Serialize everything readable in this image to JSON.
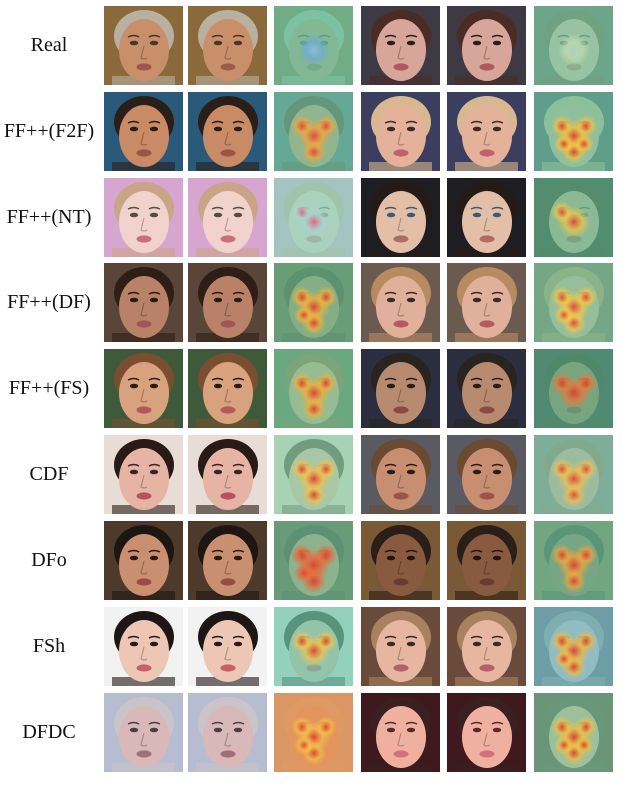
{
  "figure": {
    "rows": [
      {
        "label": "Real",
        "faces": [
          {
            "bg": "#8a6a3a",
            "skin": "#c98f6a",
            "hair": "#b8b0a0",
            "eyes": "#4a3426",
            "lips": "#9c5a4a"
          },
          {
            "bg": "#3e3a44",
            "skin": "#d8a59a",
            "hair": "#4a2c24",
            "eyes": "#2b1d18",
            "lips": "#b0585e"
          }
        ],
        "heat": [
          {
            "base": "#66c8a4",
            "hot": [
              "#8fbfd8",
              "#6fa9d6"
            ],
            "blobs": 1
          },
          {
            "base": "#7fcfa5",
            "hot": [
              "#a8d4c0",
              "#c3dbb2"
            ],
            "blobs": 1
          }
        ]
      },
      {
        "label": "FF++(F2F)",
        "faces": [
          {
            "bg": "#2a5a7a",
            "skin": "#c98a66",
            "hair": "#2a1e18",
            "eyes": "#2a1d16",
            "lips": "#9a5448"
          },
          {
            "bg": "#3b3e5e",
            "skin": "#e4b29a",
            "hair": "#d8b890",
            "eyes": "#3a2a22",
            "lips": "#c0606a"
          }
        ],
        "heat": [
          {
            "base": "#7cc6a0",
            "hot": [
              "#e8463a",
              "#f2a53c"
            ],
            "blobs": 4
          },
          {
            "base": "#6fc39e",
            "hot": [
              "#e2402f",
              "#f6c23e"
            ],
            "blobs": 6
          }
        ]
      },
      {
        "label": "FF++(NT)",
        "faces": [
          {
            "bg": "#d7a6d0",
            "skin": "#f1d2cc",
            "hair": "#c9a486",
            "eyes": "#5a4a44",
            "lips": "#c8707a"
          },
          {
            "bg": "#1e1e22",
            "skin": "#e4bfa8",
            "hair": "#241a16",
            "eyes": "#3a5a7a",
            "lips": "#b46a64"
          }
        ],
        "heat": [
          {
            "base": "#8fd0b8",
            "hot": [
              "#e8607a",
              "#a9d3cf"
            ],
            "blobs": 2
          },
          {
            "base": "#67b98e",
            "hot": [
              "#e2463a",
              "#f0c84a"
            ],
            "blobs": 2
          }
        ]
      },
      {
        "label": "FF++(DF)",
        "faces": [
          {
            "bg": "#5a4638",
            "skin": "#b98268",
            "hair": "#2e1e16",
            "eyes": "#2a1a12",
            "lips": "#a0545a"
          },
          {
            "bg": "#6a5a50",
            "skin": "#e0b09a",
            "hair": "#b88a60",
            "eyes": "#3a2a22",
            "lips": "#b65a60"
          }
        ],
        "heat": [
          {
            "base": "#6fbf92",
            "hot": [
              "#e2402f",
              "#f2b43a"
            ],
            "blobs": 5
          },
          {
            "base": "#7ac49a",
            "hot": [
              "#e6453a",
              "#f4c744"
            ],
            "blobs": 5
          }
        ]
      },
      {
        "label": "FF++(FS)",
        "faces": [
          {
            "bg": "#3e5a3a",
            "skin": "#d8a27e",
            "hair": "#7a4e2e",
            "eyes": "#2a1a12",
            "lips": "#b4585a"
          },
          {
            "bg": "#2a2e3e",
            "skin": "#b88a70",
            "hair": "#2a2420",
            "eyes": "#2a1e18",
            "lips": "#8a4a44"
          }
        ],
        "heat": [
          {
            "base": "#7cc69a",
            "hot": [
              "#e2402f",
              "#f2b03a"
            ],
            "blobs": 4
          },
          {
            "base": "#5fae86",
            "hot": [
              "#d8402f",
              "#e87a3a"
            ],
            "blobs": 3
          }
        ]
      },
      {
        "label": "CDF",
        "faces": [
          {
            "bg": "#e8dcd6",
            "skin": "#e6b4a4",
            "hair": "#2a1a16",
            "eyes": "#3a2420",
            "lips": "#b8505e"
          },
          {
            "bg": "#5a5a62",
            "skin": "#c88e72",
            "hair": "#6a4a30",
            "eyes": "#2a1e18",
            "lips": "#9a5448"
          }
        ],
        "heat": [
          {
            "base": "#8fcfa6",
            "hot": [
              "#e2402f",
              "#f3c04a"
            ],
            "blobs": 4
          },
          {
            "base": "#8ccfb0",
            "hot": [
              "#e8463a",
              "#f0c050"
            ],
            "blobs": 4
          }
        ]
      },
      {
        "label": "DFo",
        "faces": [
          {
            "bg": "#4e3a2a",
            "skin": "#c89070",
            "hair": "#1e1612",
            "eyes": "#2a1a12",
            "lips": "#9a4a44"
          },
          {
            "bg": "#7a5a36",
            "skin": "#8a5a40",
            "hair": "#2a1e18",
            "eyes": "#201612",
            "lips": "#6a3a30"
          }
        ],
        "heat": [
          {
            "base": "#74c098",
            "hot": [
              "#e0402f",
              "#ea6a3a"
            ],
            "blobs": 5
          },
          {
            "base": "#6fc39e",
            "hot": [
              "#e2402f",
              "#f2a53c"
            ],
            "blobs": 4
          }
        ]
      },
      {
        "label": "FSh",
        "faces": [
          {
            "bg": "#f2f2f2",
            "skin": "#eec6b6",
            "hair": "#1e1614",
            "eyes": "#2a1a16",
            "lips": "#c8606a"
          },
          {
            "bg": "#6a4a3a",
            "skin": "#e6b6a0",
            "hair": "#a8825e",
            "eyes": "#3a2a22",
            "lips": "#b4606a"
          }
        ],
        "heat": [
          {
            "base": "#6fc3a8",
            "hot": [
              "#e2402f",
              "#f3c44a"
            ],
            "blobs": 3
          },
          {
            "base": "#6fbfd0",
            "hot": [
              "#e0402f",
              "#f2b83e"
            ],
            "blobs": 5
          }
        ]
      },
      {
        "label": "DFDC",
        "faces": [
          {
            "bg": "#b8bcd0",
            "skin": "#d8b8b8",
            "hair": "#c8c4c8",
            "eyes": "#4a4044",
            "lips": "#a07078"
          },
          {
            "bg": "#3e1a1e",
            "skin": "#f0b0a0",
            "hair": "#3a2020",
            "eyes": "#5a2a2a",
            "lips": "#d0707a"
          }
        ],
        "heat": [
          {
            "base": "#e8883a",
            "hot": [
              "#e2402f",
              "#f3c04a"
            ],
            "blobs": 5
          },
          {
            "base": "#7cc69a",
            "hot": [
              "#e2402f",
              "#f0c040"
            ],
            "blobs": 6
          }
        ]
      }
    ]
  }
}
